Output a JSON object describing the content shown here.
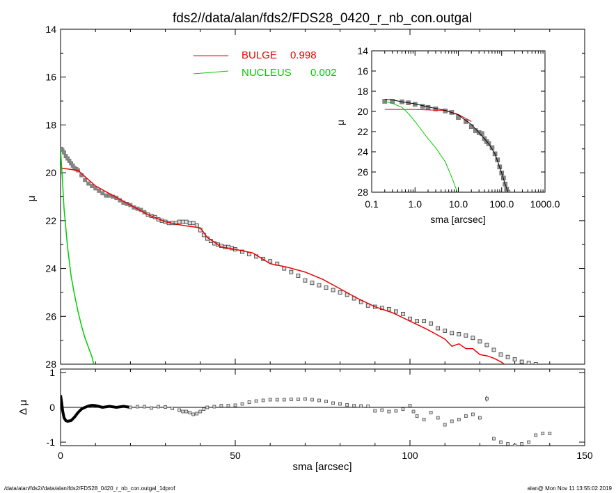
{
  "page": {
    "title": "fds2//data/alan/fds2/FDS28_0420_r_nb_con.outgal",
    "footer_left": "/data/alan/fds2//data/alan/fds2/FDS28_0420_r_nb_con.outgal_1dprof",
    "footer_right": "alan@  Mon Nov 11 13:55:02 2019"
  },
  "legend": [
    {
      "label": "BULGE",
      "value": "0.998",
      "color": "#ee0000"
    },
    {
      "label": "NUCLEUS",
      "value": "0.002",
      "color": "#00cc00"
    }
  ],
  "colors": {
    "bulge": "#ee0000",
    "nucleus": "#00cc00",
    "data": "#777777",
    "model": "#000000"
  },
  "chart_data": [
    {
      "type": "scatter",
      "name": "main",
      "xlabel": "",
      "ylabel": "μ",
      "xlim": [
        0,
        150
      ],
      "ylim": [
        28,
        14
      ],
      "y_inverted": true,
      "xticks": [
        0,
        50,
        100,
        150
      ],
      "yticks": [
        14,
        16,
        18,
        20,
        22,
        24,
        26,
        28
      ],
      "ytick_labels": [
        "14",
        "16",
        "18",
        "20",
        "22",
        "24",
        "26",
        "28"
      ],
      "data_points": {
        "x": [
          0.2,
          0.5,
          1.0,
          1.5,
          2.0,
          2.5,
          3.0,
          3.5,
          4.0,
          4.5,
          5.0,
          6.0,
          7.0,
          8.0,
          9.0,
          10.0,
          11.0,
          12.0,
          13.0,
          14.0,
          15.0,
          16.0,
          17.0,
          18.0,
          19.0,
          20.0,
          21.0,
          22.0,
          23.0,
          24.0,
          25.0,
          26.0,
          27.0,
          28.0,
          29.0,
          30.0,
          31.0,
          32.0,
          33.0,
          34.0,
          35.0,
          36.0,
          37.0,
          38.0,
          39.0,
          40.0,
          41.0,
          42.0,
          43.0,
          44.0,
          45.0,
          46.0,
          47.0,
          48.0,
          49.0,
          50.0,
          52.0,
          54.0,
          56.0,
          58.0,
          60.0,
          62.0,
          64.0,
          66.0,
          68.0,
          70.0,
          72.0,
          74.0,
          76.0,
          78.0,
          80.0,
          82.0,
          84.0,
          86.0,
          88.0,
          90.0,
          92.0,
          94.0,
          96.0,
          98.0,
          100.0,
          102.0,
          104.0,
          106.0,
          108.0,
          110.0,
          112.0,
          114.0,
          116.0,
          118.0,
          120.0,
          122.0,
          124.0,
          126.0,
          128.0,
          130.0,
          132.0,
          134.0,
          136.0,
          138.0
        ],
        "y": [
          19.0,
          19.05,
          19.15,
          19.3,
          19.4,
          19.5,
          19.6,
          19.7,
          19.8,
          19.85,
          19.9,
          20.1,
          20.3,
          20.45,
          20.55,
          20.65,
          20.75,
          20.85,
          20.95,
          20.95,
          21.0,
          21.05,
          21.15,
          21.25,
          21.3,
          21.35,
          21.45,
          21.5,
          21.55,
          21.65,
          21.75,
          21.8,
          21.85,
          21.95,
          22.0,
          22.05,
          22.1,
          22.1,
          22.1,
          22.05,
          22.05,
          22.05,
          22.1,
          22.1,
          22.2,
          22.4,
          22.6,
          22.75,
          22.85,
          22.95,
          23.0,
          23.05,
          23.1,
          23.1,
          23.15,
          23.2,
          23.3,
          23.4,
          23.5,
          23.6,
          23.7,
          23.8,
          24.0,
          24.15,
          24.3,
          24.5,
          24.6,
          24.7,
          24.8,
          24.9,
          25.0,
          25.1,
          25.25,
          25.4,
          25.55,
          25.6,
          25.65,
          25.7,
          25.8,
          25.9,
          26.1,
          26.2,
          26.2,
          26.3,
          26.5,
          26.6,
          26.7,
          26.75,
          26.8,
          26.9,
          27.05,
          27.2,
          27.4,
          27.6,
          27.7,
          27.8,
          27.9,
          27.95,
          28.0,
          28.1
        ]
      },
      "series": [
        {
          "name": "BULGE",
          "color": "#ee0000",
          "x": [
            0,
            5,
            10,
            15,
            20,
            25,
            30,
            35,
            40,
            42,
            44,
            46,
            50,
            55,
            60,
            65,
            70,
            75,
            80,
            85,
            90,
            95,
            100,
            105,
            110,
            112,
            114,
            116,
            118,
            120,
            122,
            124,
            126,
            127
          ],
          "y": [
            19.8,
            19.9,
            20.55,
            20.95,
            21.35,
            21.75,
            22.05,
            22.2,
            22.3,
            22.7,
            22.9,
            23.1,
            23.2,
            23.35,
            23.8,
            23.95,
            24.15,
            24.45,
            24.85,
            25.25,
            25.6,
            25.85,
            26.2,
            26.55,
            26.95,
            27.25,
            27.15,
            27.35,
            27.35,
            27.6,
            27.65,
            27.75,
            27.9,
            28.0
          ]
        },
        {
          "name": "NUCLEUS",
          "color": "#00cc00",
          "x": [
            0,
            0.5,
            1,
            2,
            3,
            4,
            5,
            6,
            7,
            8,
            9,
            9.5
          ],
          "y": [
            19.0,
            20.2,
            21.5,
            23.1,
            24.3,
            25.1,
            25.8,
            26.4,
            26.9,
            27.3,
            27.7,
            28.0
          ]
        }
      ]
    },
    {
      "type": "scatter",
      "name": "inset",
      "xlabel": "sma [arcsec]",
      "ylabel": "μ",
      "xscale": "log",
      "xlim": [
        0.1,
        1000
      ],
      "ylim": [
        28,
        14
      ],
      "xtick_labels": [
        "0.1",
        "1.0",
        "10.0",
        "100.0",
        "1000.0"
      ],
      "yticks": [
        14,
        16,
        18,
        20,
        22,
        24,
        26,
        28
      ],
      "ytick_labels": [
        "14",
        "16",
        "18",
        "20",
        "22",
        "24",
        "26",
        "28"
      ],
      "data_points": {
        "x": [
          0.2,
          0.3,
          0.5,
          0.7,
          1.0,
          1.5,
          2,
          3,
          5,
          7,
          10,
          15,
          20,
          25,
          30,
          35,
          40,
          45,
          50,
          60,
          70,
          80,
          90,
          100,
          110,
          120,
          130,
          140
        ],
        "y": [
          19.0,
          19.0,
          19.05,
          19.15,
          19.3,
          19.5,
          19.6,
          19.75,
          19.95,
          20.1,
          20.6,
          21.0,
          21.5,
          21.9,
          22.1,
          22.2,
          22.7,
          23.0,
          23.2,
          23.6,
          24.2,
          24.8,
          25.5,
          26.1,
          26.6,
          27.2,
          27.7,
          28.0
        ]
      },
      "series": [
        {
          "name": "BULGE",
          "color": "#ee0000",
          "x": [
            0.2,
            0.5,
            1,
            2,
            5,
            10,
            20
          ],
          "y": [
            19.8,
            19.8,
            19.8,
            19.85,
            19.9,
            20.3,
            21.0
          ]
        },
        {
          "name": "NUCLEUS",
          "color": "#00cc00",
          "x": [
            0.2,
            0.3,
            0.5,
            0.7,
            1,
            1.5,
            2,
            3,
            5,
            7,
            9.5
          ],
          "y": [
            19.0,
            19.2,
            19.6,
            20.2,
            21.0,
            22.0,
            22.7,
            23.6,
            25.0,
            26.5,
            28.0
          ]
        },
        {
          "name": "",
          "color": "#000000",
          "x": [
            0.2,
            0.3,
            0.5,
            1,
            2,
            5,
            10,
            20,
            30,
            40,
            50,
            70,
            100,
            120,
            140
          ],
          "y": [
            18.8,
            18.85,
            19.05,
            19.25,
            19.55,
            19.9,
            20.35,
            21.3,
            22.1,
            22.7,
            23.2,
            24.2,
            26.1,
            27.2,
            28.0
          ]
        }
      ]
    },
    {
      "type": "scatter",
      "name": "residuals",
      "xlabel": "sma [arcsec]",
      "ylabel": "Δ μ",
      "xlim": [
        0,
        150
      ],
      "ylim": [
        -1.1,
        1.1
      ],
      "xticks": [
        0,
        50,
        100,
        150
      ],
      "yticks": [
        -1,
        0,
        1
      ],
      "ytick_labels": [
        "-1",
        "0",
        "1"
      ],
      "reference_line": 0,
      "black_curve": {
        "x": [
          0,
          0.3,
          0.6,
          1,
          1.5,
          2,
          3,
          4,
          5,
          6,
          7,
          8,
          9,
          10,
          12,
          14,
          16,
          18,
          20
        ],
        "y": [
          0.35,
          0.15,
          -0.1,
          -0.3,
          -0.38,
          -0.4,
          -0.38,
          -0.28,
          -0.15,
          -0.05,
          0.0,
          0.04,
          0.06,
          0.05,
          0.0,
          0.03,
          0.0,
          0.03,
          0.0
        ]
      },
      "points": {
        "x": [
          20,
          22,
          24,
          26,
          28,
          30,
          32,
          34,
          35,
          36,
          37,
          38,
          39,
          40,
          41,
          42,
          44,
          46,
          48,
          50,
          52,
          54,
          56,
          58,
          60,
          62,
          64,
          66,
          68,
          70,
          72,
          74,
          76,
          78,
          80,
          82,
          84,
          86,
          88,
          90,
          92,
          94,
          96,
          98,
          100,
          101,
          102,
          104,
          106,
          108,
          110,
          112,
          114,
          116,
          118,
          120,
          122,
          124,
          126,
          128,
          130,
          132,
          134,
          136,
          138,
          140
        ],
        "y": [
          0.0,
          0.02,
          0.02,
          -0.02,
          0.02,
          0.01,
          -0.03,
          -0.08,
          -0.12,
          -0.12,
          -0.15,
          -0.2,
          -0.18,
          -0.12,
          -0.05,
          0.0,
          0.02,
          0.05,
          0.05,
          0.06,
          0.1,
          0.15,
          0.18,
          0.2,
          0.22,
          0.22,
          0.22,
          0.23,
          0.23,
          0.24,
          0.22,
          0.2,
          0.17,
          0.12,
          0.1,
          0.07,
          0.05,
          0.04,
          0.03,
          -0.1,
          -0.08,
          -0.12,
          -0.1,
          -0.05,
          0.05,
          -0.12,
          -0.25,
          -0.35,
          -0.15,
          -0.3,
          -0.5,
          -0.4,
          -0.35,
          -0.25,
          -0.2,
          -0.3,
          0.25,
          -0.9,
          -1.0,
          -1.05,
          -1.1,
          -1.05,
          -1.0,
          -0.8,
          -0.75,
          -0.75
        ],
        "errors": [
          0,
          0,
          0,
          0,
          0,
          0,
          0,
          0,
          0,
          0,
          0,
          0,
          0,
          0,
          0,
          0,
          0,
          0,
          0,
          0,
          0,
          0,
          0,
          0,
          0,
          0,
          0,
          0,
          0,
          0,
          0,
          0,
          0,
          0,
          0,
          0,
          0,
          0,
          0,
          0,
          0,
          0,
          0,
          0,
          0,
          0,
          0,
          0,
          0,
          0,
          0,
          0,
          0,
          0,
          0,
          0,
          0.08,
          0,
          0,
          0,
          0,
          0,
          0,
          0,
          0,
          0
        ]
      }
    }
  ]
}
